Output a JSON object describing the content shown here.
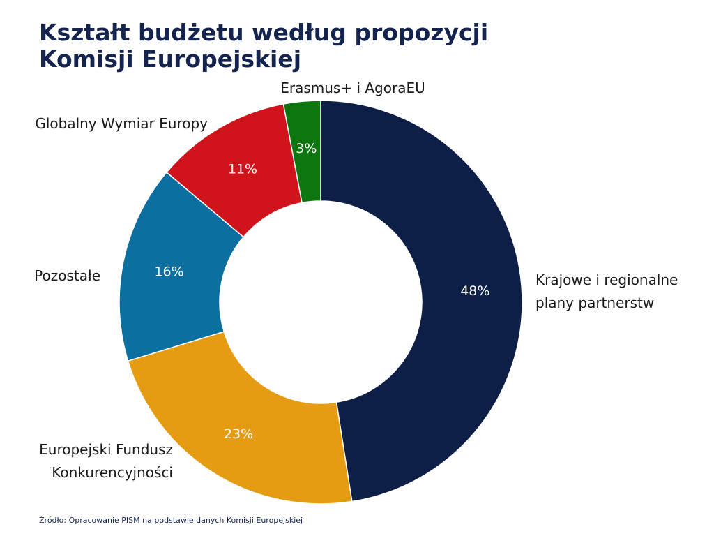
{
  "header": {
    "title_line1": "Kształt budżetu według propozycji",
    "title_line2": "Komisji Europejskiej"
  },
  "chart_data": {
    "type": "pie",
    "variant": "donut",
    "title": "Kształt budżetu według propozycji Komisji Europejskiej",
    "unit": "%",
    "series": [
      {
        "name": "Krajowe i regionalne plany partnerstw",
        "label_lines": [
          "Krajowe i regionalne",
          "plany partnerstw"
        ],
        "value": 48,
        "label": "48%",
        "color": "#0e1f47"
      },
      {
        "name": "Europejski Fundusz Konkurencyjności",
        "label_lines": [
          "Europejski Fundusz",
          "Konkurencyjności"
        ],
        "value": 23,
        "label": "23%",
        "color": "#e59c12"
      },
      {
        "name": "Pozostałe",
        "label_lines": [
          "Pozostałe"
        ],
        "value": 16,
        "label": "16%",
        "color": "#0c6fa0"
      },
      {
        "name": "Globalny Wymiar Europy",
        "label_lines": [
          "Globalny Wymiar Europy"
        ],
        "value": 11,
        "label": "11%",
        "color": "#d0141b"
      },
      {
        "name": "Erasmus+ i AgoraEU",
        "label_lines": [
          "Erasmus+ i AgoraEU"
        ],
        "value": 3,
        "label": "3%",
        "color": "#0d760f"
      }
    ]
  },
  "footer": {
    "source": "Źródło: Opracowanie PISM na podstawie danych Komisji Europejskiej"
  }
}
